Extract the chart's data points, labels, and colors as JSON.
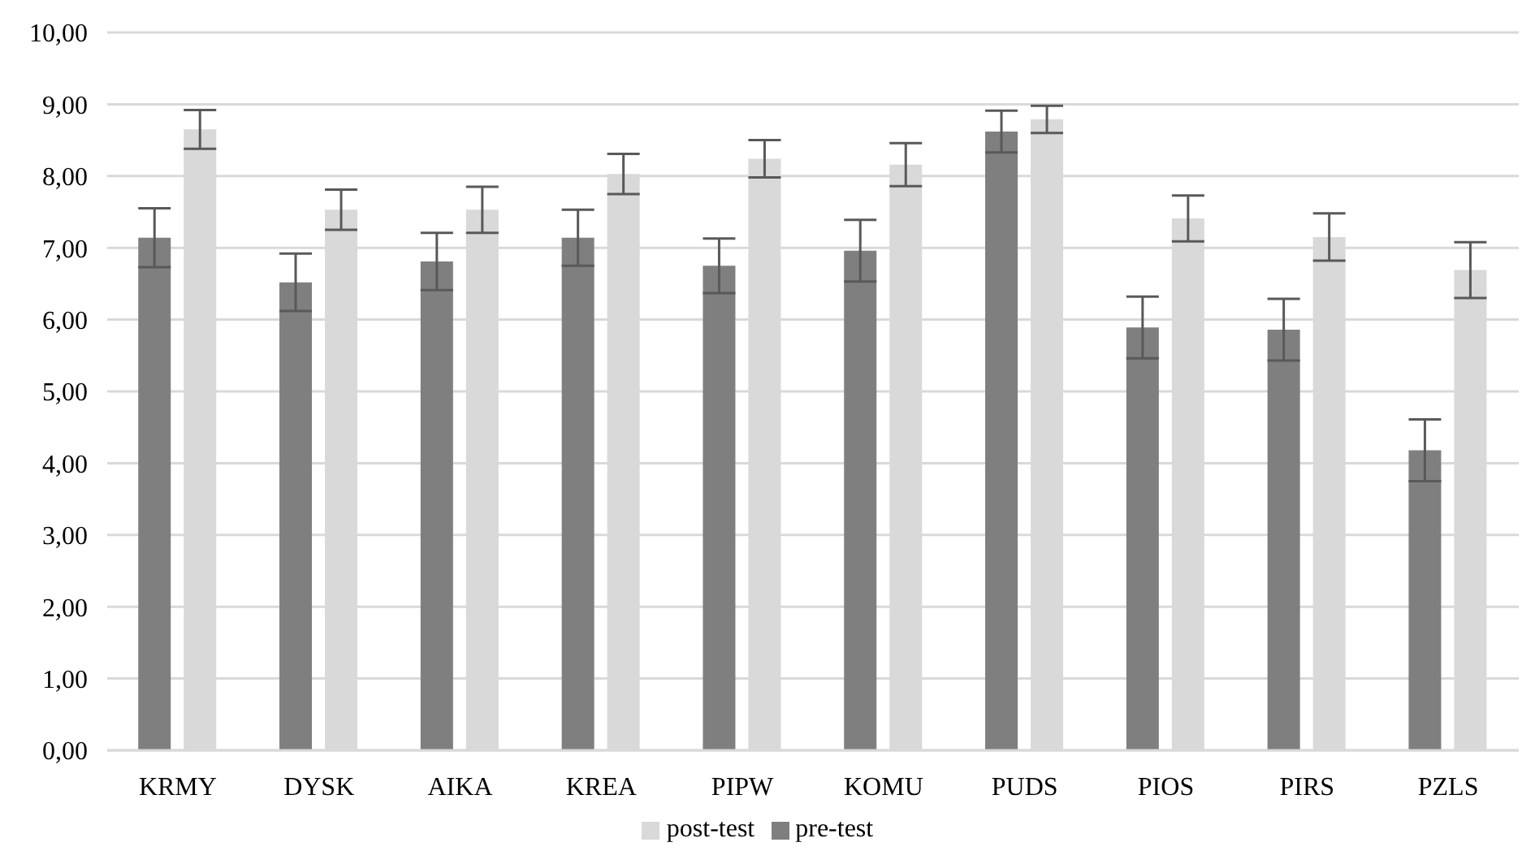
{
  "chart_data": {
    "type": "bar",
    "categories": [
      "KRMY",
      "DYSK",
      "AIKA",
      "KREA",
      "PIPW",
      "KOMU",
      "PUDS",
      "PIOS",
      "PIRS",
      "PZLS"
    ],
    "series": [
      {
        "name": "pre-test",
        "color": "#7f7f7f",
        "values": [
          7.14,
          6.52,
          6.81,
          7.14,
          6.75,
          6.96,
          8.62,
          5.89,
          5.86,
          4.18
        ],
        "errors": [
          0.41,
          0.4,
          0.4,
          0.39,
          0.38,
          0.43,
          0.29,
          0.43,
          0.43,
          0.43
        ]
      },
      {
        "name": "post-test",
        "color": "#d9d9d9",
        "values": [
          8.65,
          7.53,
          7.53,
          8.03,
          8.24,
          8.16,
          8.79,
          7.41,
          7.15,
          6.69
        ],
        "errors": [
          0.27,
          0.28,
          0.32,
          0.28,
          0.26,
          0.3,
          0.19,
          0.32,
          0.33,
          0.39
        ]
      }
    ],
    "ylim": [
      0,
      10
    ],
    "yticks": [
      {
        "value": 0,
        "label": "0,00"
      },
      {
        "value": 1,
        "label": "1,00"
      },
      {
        "value": 2,
        "label": "2,00"
      },
      {
        "value": 3,
        "label": "3,00"
      },
      {
        "value": 4,
        "label": "4,00"
      },
      {
        "value": 5,
        "label": "5,00"
      },
      {
        "value": 6,
        "label": "6,00"
      },
      {
        "value": 7,
        "label": "7,00"
      },
      {
        "value": 8,
        "label": "8,00"
      },
      {
        "value": 9,
        "label": "9,00"
      },
      {
        "value": 10,
        "label": "10,00"
      }
    ],
    "grid": "y",
    "legend": "bottom"
  }
}
